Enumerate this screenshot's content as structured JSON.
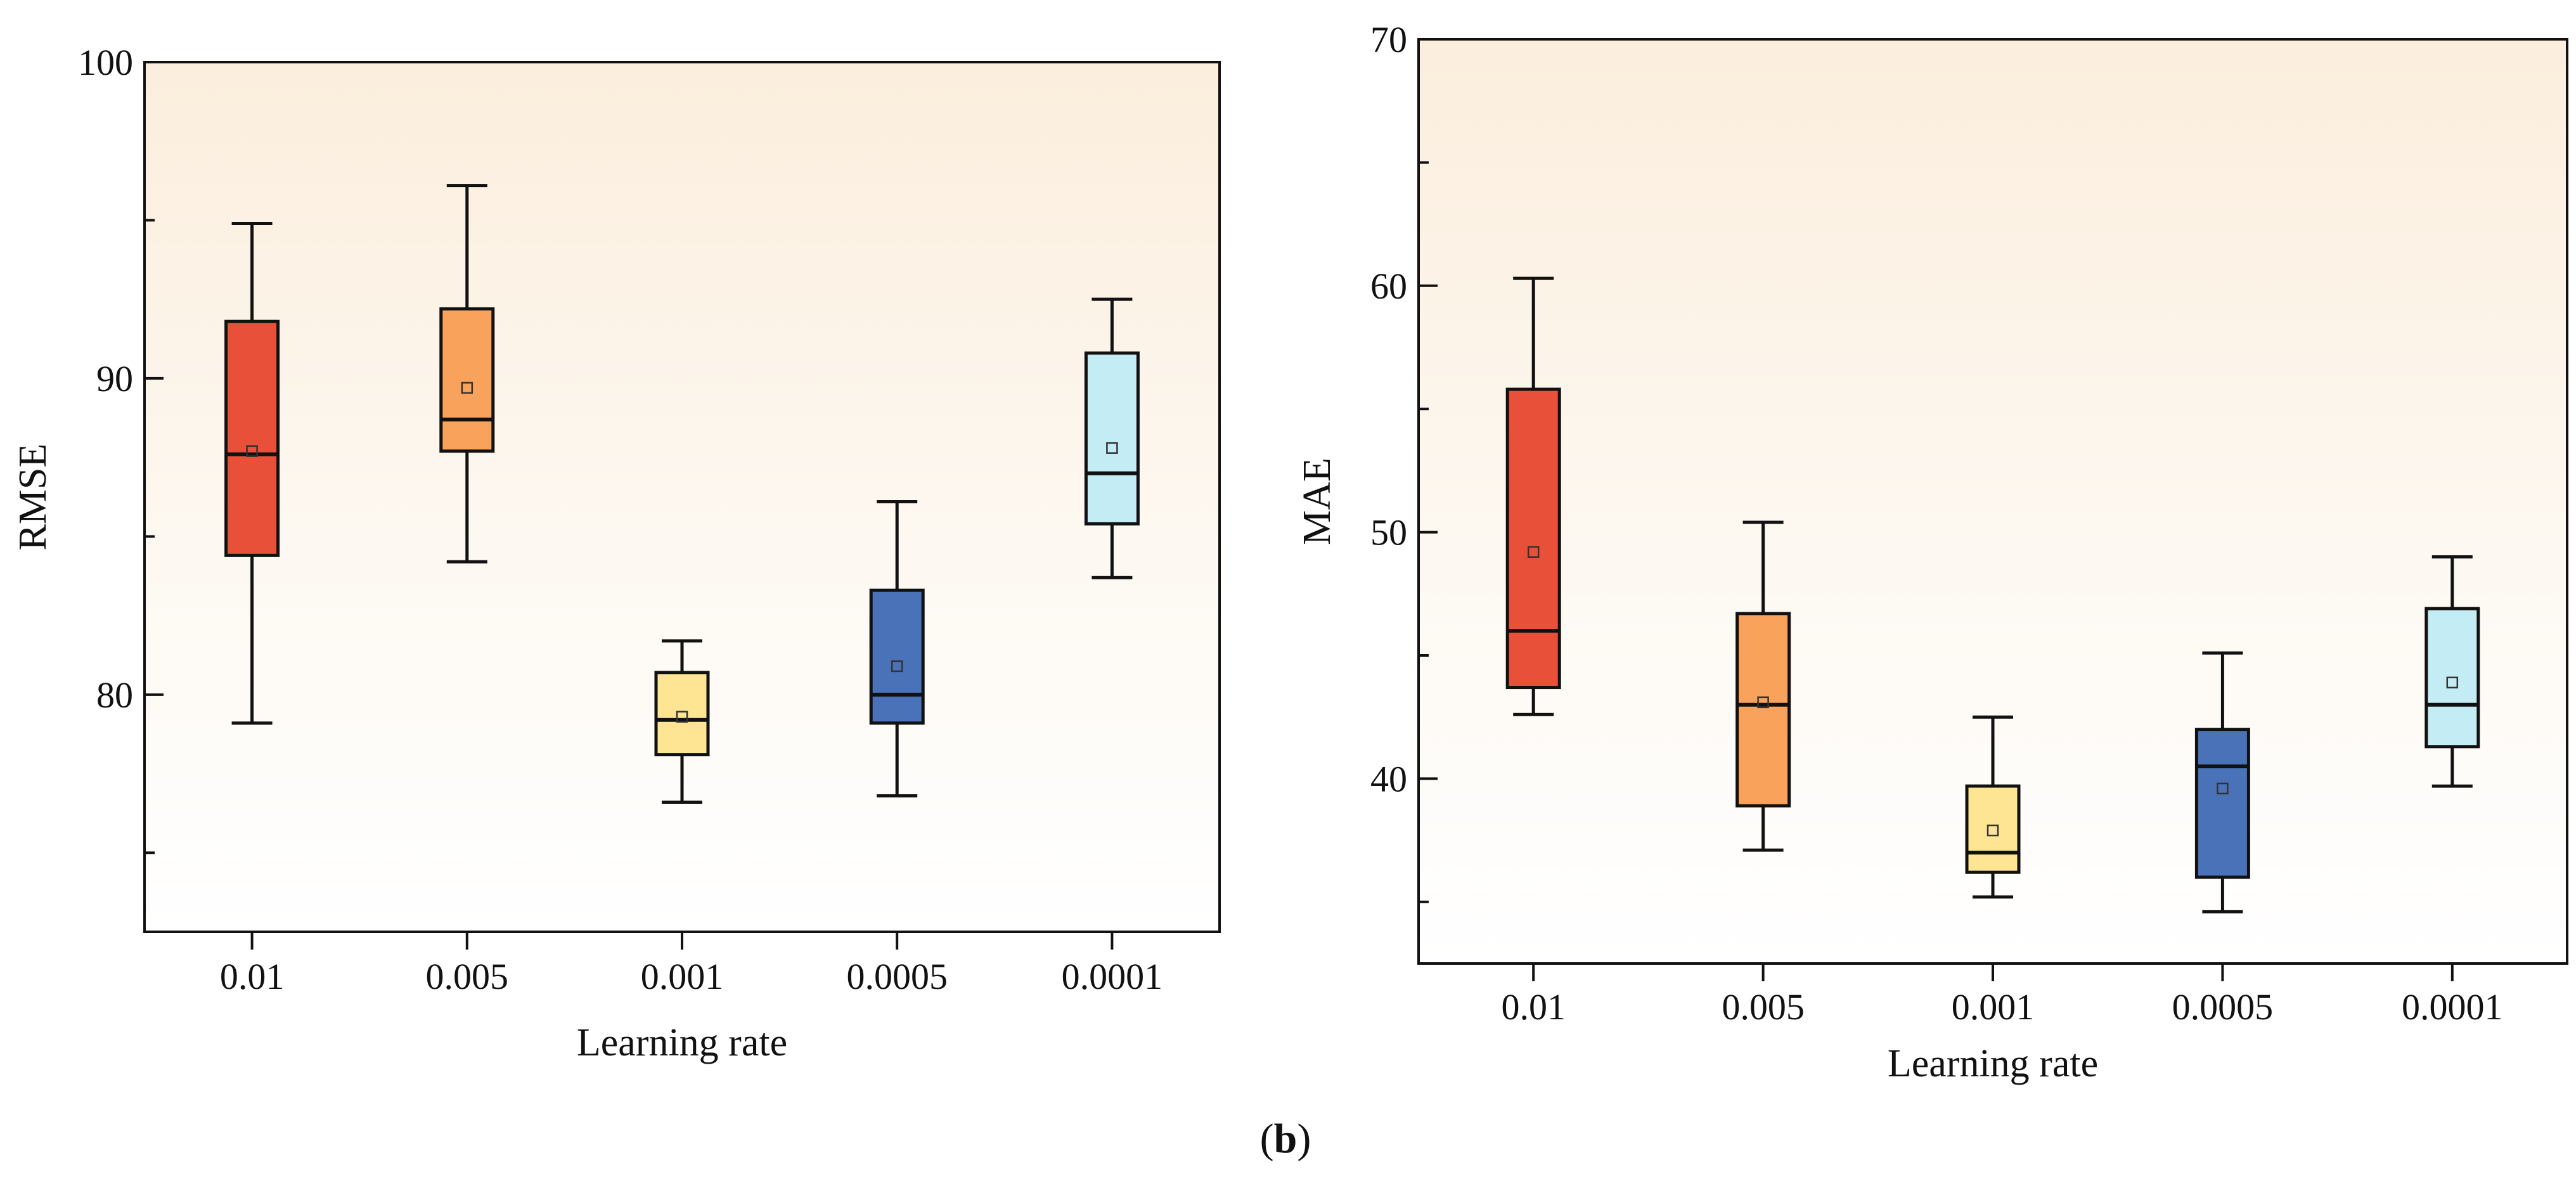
{
  "caption": {
    "open": "(",
    "label": "b",
    "close": ")"
  },
  "chart_data": [
    {
      "type": "box",
      "title": "",
      "xlabel": "Learning rate",
      "ylabel": "RMSE",
      "ylim": [
        72.5,
        100
      ],
      "yticks": [
        80,
        90,
        100
      ],
      "ytick_labels": [
        "80",
        "90",
        "100"
      ],
      "categories": [
        "0.01",
        "0.005",
        "0.001",
        "0.0005",
        "0.0001"
      ],
      "colors": [
        "#e8503a",
        "#f9a25b",
        "#fde594",
        "#4a72b8",
        "#c4ecf4"
      ],
      "boxes": [
        {
          "whisker_low": 79.1,
          "q1": 84.4,
          "median": 87.6,
          "q3": 91.8,
          "whisker_high": 94.9,
          "mean": 87.7
        },
        {
          "whisker_low": 84.2,
          "q1": 87.7,
          "median": 88.7,
          "q3": 92.2,
          "whisker_high": 96.1,
          "mean": 89.7
        },
        {
          "whisker_low": 76.6,
          "q1": 78.1,
          "median": 79.2,
          "q3": 80.7,
          "whisker_high": 81.7,
          "mean": 79.3
        },
        {
          "whisker_low": 76.8,
          "q1": 79.1,
          "median": 80.0,
          "q3": 83.3,
          "whisker_high": 86.1,
          "mean": 80.9
        },
        {
          "whisker_low": 83.7,
          "q1": 85.4,
          "median": 87.0,
          "q3": 90.8,
          "whisker_high": 92.5,
          "mean": 87.8
        }
      ]
    },
    {
      "type": "box",
      "title": "",
      "xlabel": "Learning rate",
      "ylabel": "MAE",
      "ylim": [
        32.5,
        70
      ],
      "yticks": [
        40,
        50,
        60,
        70
      ],
      "ytick_labels": [
        "40",
        "50",
        "60",
        "70"
      ],
      "categories": [
        "0.01",
        "0.005",
        "0.001",
        "0.0005",
        "0.0001"
      ],
      "colors": [
        "#e8503a",
        "#f9a25b",
        "#fde594",
        "#4a72b8",
        "#c4ecf4"
      ],
      "boxes": [
        {
          "whisker_low": 42.6,
          "q1": 43.7,
          "median": 46.0,
          "q3": 55.8,
          "whisker_high": 60.3,
          "mean": 49.2
        },
        {
          "whisker_low": 37.1,
          "q1": 38.9,
          "median": 43.0,
          "q3": 46.7,
          "whisker_high": 50.4,
          "mean": 43.1
        },
        {
          "whisker_low": 35.2,
          "q1": 36.2,
          "median": 37.0,
          "q3": 39.7,
          "whisker_high": 42.5,
          "mean": 37.9
        },
        {
          "whisker_low": 34.6,
          "q1": 36.0,
          "median": 40.5,
          "q3": 42.0,
          "whisker_high": 45.1,
          "mean": 39.6
        },
        {
          "whisker_low": 39.7,
          "q1": 41.3,
          "median": 43.0,
          "q3": 46.9,
          "whisker_high": 49.0,
          "mean": 43.9
        }
      ]
    }
  ]
}
